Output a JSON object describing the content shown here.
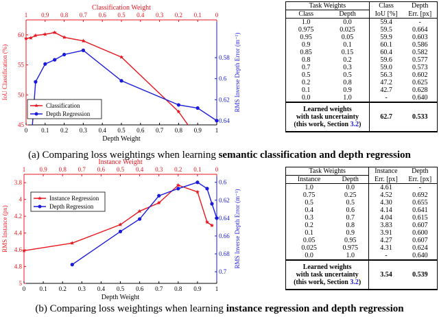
{
  "caption_a": {
    "prefix": "(a) Comparing loss weightings when learning ",
    "bold": "semantic classification and depth regression"
  },
  "caption_b": {
    "prefix": "(b) Comparing loss weightings when learning ",
    "bold": "instance regression and depth regression"
  },
  "colors": {
    "red": "#e8141c",
    "blue": "#1a1adb",
    "link": "#1a1adb"
  },
  "table_a": {
    "group_header": "Task Weights",
    "col_headers": [
      "Class",
      "Depth",
      "Class IoU [%]",
      "Depth Err. [px]"
    ],
    "rows": [
      [
        "1.0",
        "0.0",
        "59.4",
        "-"
      ],
      [
        "0.975",
        "0.025",
        "59.5",
        "0.664"
      ],
      [
        "0.95",
        "0.05",
        "59.9",
        "0.603"
      ],
      [
        "0.9",
        "0.1",
        "60.1",
        "0.586"
      ],
      [
        "0.85",
        "0.15",
        "60.4",
        "0.582"
      ],
      [
        "0.8",
        "0.2",
        "59.6",
        "0.577"
      ],
      [
        "0.7",
        "0.3",
        "59.0",
        "0.573"
      ],
      [
        "0.5",
        "0.5",
        "56.3",
        "0.602"
      ],
      [
        "0.2",
        "0.8",
        "47.2",
        "0.625"
      ],
      [
        "0.1",
        "0.9",
        "42.7",
        "0.628"
      ],
      [
        "0.0",
        "1.0",
        "-",
        "0.640"
      ]
    ],
    "learned": {
      "label_1": "Learned weights",
      "label_2": "with task uncertainty",
      "label_3": "(this work, Section ",
      "ref": "3.2",
      "label_3_end": ")",
      "v1": "62.7",
      "v2": "0.533"
    }
  },
  "table_b": {
    "group_header": "Task Weights",
    "col_headers": [
      "Instance",
      "Depth",
      "Instance Err. [px]",
      "Depth Err. [px]"
    ],
    "rows": [
      [
        "1.0",
        "0.0",
        "4.61",
        "-"
      ],
      [
        "0.75",
        "0.25",
        "4.52",
        "0.692"
      ],
      [
        "0.5",
        "0.5",
        "4.30",
        "0.655"
      ],
      [
        "0.4",
        "0.6",
        "4.14",
        "0.641"
      ],
      [
        "0.3",
        "0.7",
        "4.04",
        "0.615"
      ],
      [
        "0.2",
        "0.8",
        "3.83",
        "0.607"
      ],
      [
        "0.1",
        "0.9",
        "3.91",
        "0.600"
      ],
      [
        "0.05",
        "0.95",
        "4.27",
        "0.607"
      ],
      [
        "0.025",
        "0.975",
        "4.31",
        "0.624"
      ],
      [
        "0.0",
        "1.0",
        "-",
        "0.640"
      ]
    ],
    "learned": {
      "label_1": "Learned weights",
      "label_2": "with task uncertainty",
      "label_3": "(this work, Section ",
      "ref": "3.2",
      "label_3_end": ")",
      "v1": "3.54",
      "v2": "0.539"
    }
  },
  "chart_data": [
    {
      "type": "line",
      "x_bottom": {
        "label": "Depth Weight",
        "range": [
          0,
          1
        ],
        "ticks": [
          "0",
          "0.1",
          "0.2",
          "0.3",
          "0.4",
          "0.5",
          "0.6",
          "0.7",
          "0.8",
          "0.9",
          "1"
        ]
      },
      "x_top": {
        "label": "Classification Weight",
        "ticks": [
          "1",
          "0.9",
          "0.8",
          "0.7",
          "0.6",
          "0.5",
          "0.4",
          "0.3",
          "0.2",
          "0.1",
          "0"
        ]
      },
      "y_left": {
        "label": "IoU Classification (%)",
        "range": [
          45,
          62.5
        ],
        "ticks": [
          "45",
          "50",
          "55",
          "60"
        ]
      },
      "y_right": {
        "label": "RMS Inverse Depth Error (m⁻¹)",
        "range": [
          0.544,
          0.644
        ],
        "inverted": true,
        "ticks": [
          "0.58",
          "0.6",
          "0.62",
          "0.64"
        ]
      },
      "legend": {
        "position": "bottom-left",
        "entries": [
          "Classification",
          "Depth Regression"
        ]
      },
      "series": [
        {
          "name": "Classification",
          "axis": "left",
          "color": "red",
          "marker": "star",
          "x": [
            0.0,
            0.025,
            0.05,
            0.1,
            0.15,
            0.2,
            0.3,
            0.5,
            0.8,
            0.9
          ],
          "y": [
            59.4,
            59.5,
            59.9,
            60.1,
            60.4,
            59.6,
            59.0,
            56.3,
            47.2,
            42.7
          ]
        },
        {
          "name": "Depth Regression",
          "axis": "right",
          "color": "blue",
          "marker": "circle",
          "x": [
            0.025,
            0.05,
            0.1,
            0.15,
            0.2,
            0.3,
            0.5,
            0.8,
            0.9,
            1.0
          ],
          "y": [
            0.664,
            0.603,
            0.586,
            0.582,
            0.577,
            0.573,
            0.602,
            0.625,
            0.628,
            0.64
          ]
        }
      ]
    },
    {
      "type": "line",
      "x_bottom": {
        "label": "Depth Weight",
        "range": [
          0,
          1
        ],
        "ticks": [
          "0",
          "0.1",
          "0.2",
          "0.3",
          "0.4",
          "0.5",
          "0.6",
          "0.7",
          "0.8",
          "0.9",
          "1"
        ]
      },
      "x_top": {
        "label": "Instance Weight",
        "ticks": [
          "1",
          "0.9",
          "0.8",
          "0.7",
          "0.6",
          "0.5",
          "0.4",
          "0.3",
          "0.2",
          "0.1",
          "0"
        ]
      },
      "y_left": {
        "label": "RMS Instance (px)",
        "range": [
          3.7,
          5.0
        ],
        "inverted": true,
        "ticks": [
          "3.8",
          "4",
          "4.2",
          "4.4",
          "4.6",
          "4.8",
          "5"
        ]
      },
      "y_right": {
        "label": "RMS Inverse Depth Error (m⁻¹)",
        "range": [
          0.591,
          0.713
        ],
        "inverted": true,
        "ticks": [
          "0.6",
          "0.62",
          "0.64",
          "0.66",
          "0.68",
          "0.7"
        ]
      },
      "legend": {
        "position": "top-left",
        "entries": [
          "Instance Regression",
          "Depth Regression"
        ]
      },
      "series": [
        {
          "name": "Instance Regression",
          "axis": "left",
          "color": "red",
          "marker": "star",
          "x": [
            0.0,
            0.25,
            0.5,
            0.6,
            0.7,
            0.8,
            0.9,
            0.95,
            0.975
          ],
          "y": [
            4.61,
            4.52,
            4.3,
            4.14,
            4.04,
            3.83,
            3.91,
            4.27,
            4.31
          ]
        },
        {
          "name": "Depth Regression",
          "axis": "right",
          "color": "blue",
          "marker": "circle",
          "x": [
            0.25,
            0.5,
            0.6,
            0.7,
            0.8,
            0.9,
            0.95,
            0.975,
            1.0
          ],
          "y": [
            0.692,
            0.655,
            0.641,
            0.615,
            0.607,
            0.6,
            0.607,
            0.624,
            0.64
          ]
        }
      ]
    }
  ]
}
